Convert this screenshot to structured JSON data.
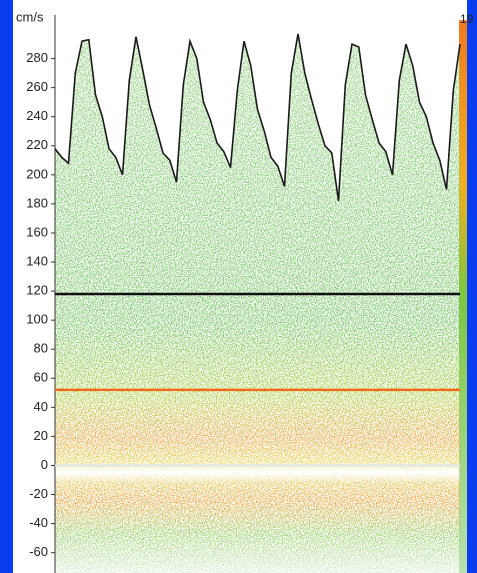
{
  "chart_data": {
    "type": "spectrogram",
    "axis_label": "cm/s",
    "corner_label": "19",
    "ylim": [
      -74,
      310
    ],
    "yticks": [
      -60,
      -40,
      -20,
      0,
      20,
      40,
      60,
      80,
      100,
      120,
      140,
      160,
      180,
      200,
      220,
      240,
      260,
      280
    ],
    "series": [
      {
        "color": "#1a1a1a",
        "values": [
          218,
          212,
          208,
          270,
          292,
          293,
          255,
          240,
          218,
          212,
          200,
          265,
          295,
          272,
          248,
          232,
          215,
          210,
          195,
          262,
          292,
          280,
          250,
          238,
          222,
          216,
          205,
          258,
          292,
          275,
          245,
          230,
          212,
          206,
          192,
          270,
          297,
          270,
          252,
          235,
          220,
          215,
          182,
          262,
          290,
          288,
          255,
          238,
          222,
          216,
          200,
          265,
          290,
          275,
          250,
          240,
          222,
          210,
          190,
          258,
          290
        ]
      }
    ],
    "reference_lines": [
      {
        "value": 118,
        "color": "#111111"
      },
      {
        "value": 52,
        "color": "#f06a1a"
      },
      {
        "value": 0,
        "color": "#dfe8e2"
      }
    ]
  }
}
